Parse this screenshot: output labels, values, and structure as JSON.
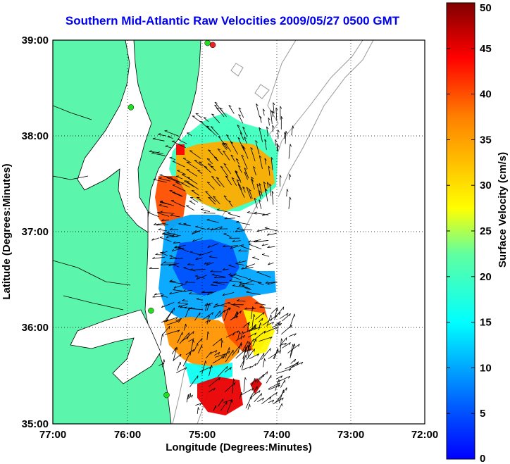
{
  "title": "Southern Mid-Atlantic Raw Velocities 2009/05/27 0500 GMT",
  "map": {
    "xlabel": "Longitude (Degrees:Minutes)",
    "ylabel": "Latitude (Degrees:Minutes)",
    "lon_ticks": [
      "77:00",
      "76:00",
      "75:00",
      "74:00",
      "73:00",
      "72:00"
    ],
    "lat_ticks": [
      "39:00",
      "38:00",
      "37:00",
      "36:00",
      "35:00"
    ],
    "lon_range": [
      -77,
      -72
    ],
    "lat_range": [
      35,
      39
    ],
    "land_color": "#5cf5ac",
    "grid": true
  },
  "colorbar": {
    "label": "Surface Velocity (cm/s)",
    "ticks": [
      "50",
      "45",
      "40",
      "35",
      "30",
      "25",
      "20",
      "15",
      "10",
      "5",
      "0"
    ],
    "range": [
      0,
      50
    ],
    "colormap": "jet"
  },
  "stations": [
    {
      "color": "#22dd22",
      "lon": -75.95,
      "lat": 38.3
    },
    {
      "color": "#ee2222",
      "lon": -74.85,
      "lat": 38.95
    },
    {
      "color": "#22dd22",
      "lon": -74.92,
      "lat": 38.97
    },
    {
      "color": "#22dd22",
      "lon": -75.68,
      "lat": 36.18
    },
    {
      "color": "#22dd22",
      "lon": -75.47,
      "lat": 35.3
    }
  ]
}
